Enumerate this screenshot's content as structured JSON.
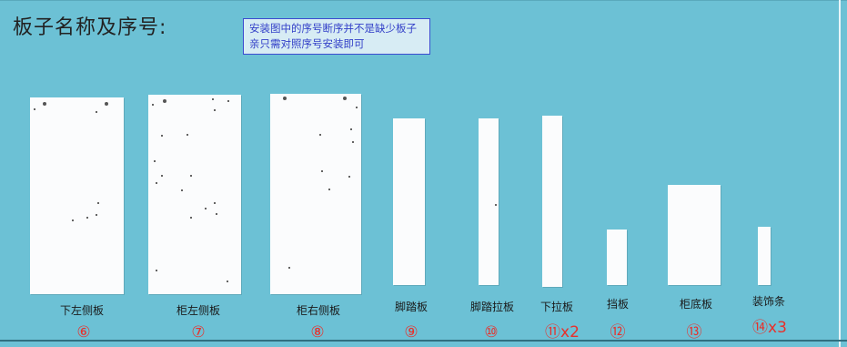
{
  "heading": "板子名称及序号:",
  "note": {
    "line1": "安装图中的序号断序并不是缺少板子",
    "line2": "亲只需对照序号安装即可"
  },
  "parts": [
    {
      "name": "下左侧板",
      "number": "⑥"
    },
    {
      "name": "柜左侧板",
      "number": "⑦"
    },
    {
      "name": "柜右侧板",
      "number": "⑧"
    },
    {
      "name": "脚踏板",
      "number": "⑨"
    },
    {
      "name": "脚踏拉板",
      "number": "⑩"
    },
    {
      "name": "下拉板",
      "number": "⑪x2"
    },
    {
      "name": "挡板",
      "number": "⑫"
    },
    {
      "name": "柜底板",
      "number": "⑬"
    },
    {
      "name": "装饰条",
      "number": "⑭x3"
    }
  ],
  "colors": {
    "background": "#6cc1d5",
    "panel": "#fbfcfd",
    "number": "#e8302b",
    "note_text": "#3340c8"
  }
}
